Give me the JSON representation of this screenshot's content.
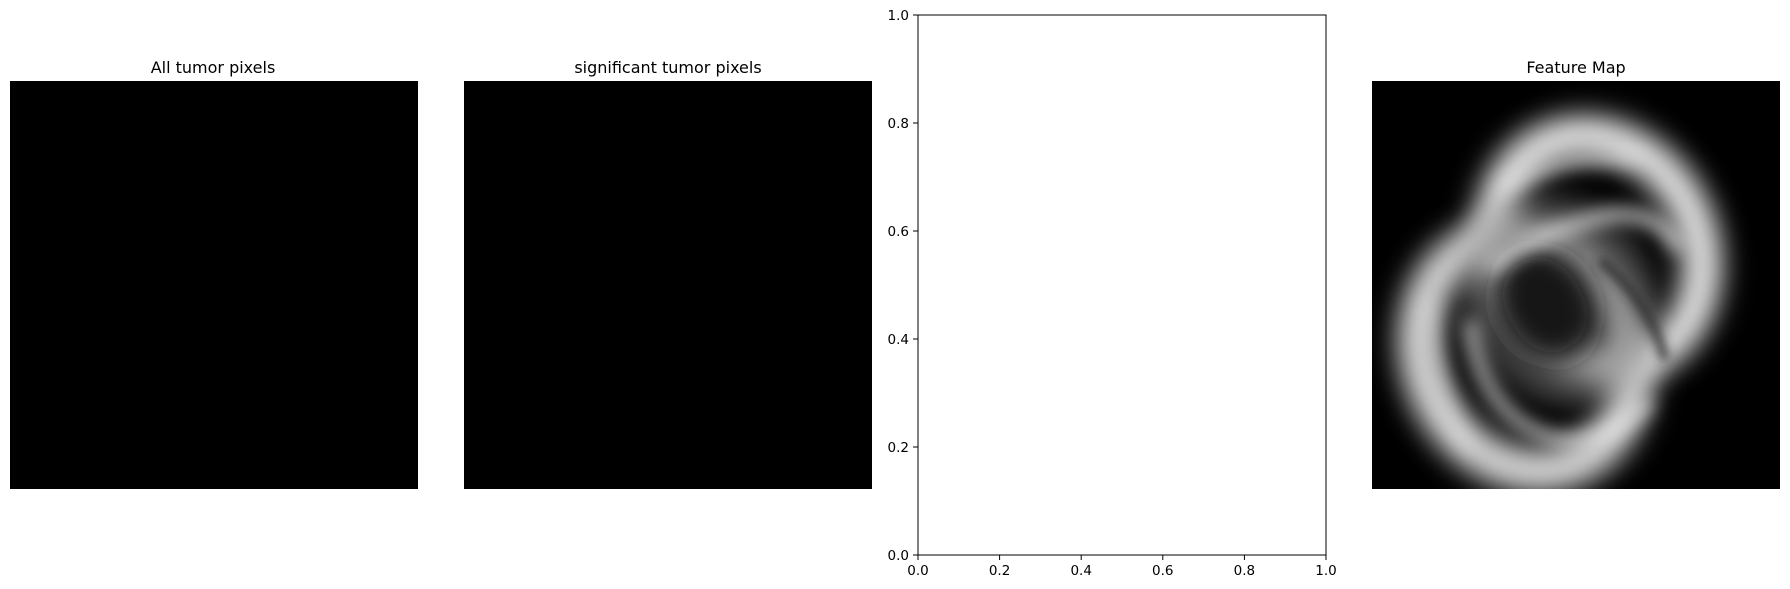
{
  "chart_data": [
    {
      "type": "image",
      "title": "All tumor pixels",
      "content": "blank (all black)",
      "colors": {
        "fill": "#000000"
      }
    },
    {
      "type": "image",
      "title": "significant tumor pixels",
      "content": "blank (all black)",
      "colors": {
        "fill": "#000000"
      }
    },
    {
      "type": "scatter",
      "title": "",
      "series": [],
      "xlim": [
        0,
        1
      ],
      "ylim": [
        0,
        1
      ],
      "xticks": [
        "0.0",
        "0.2",
        "0.4",
        "0.6",
        "0.8",
        "1.0"
      ],
      "yticks": [
        "0.0",
        "0.2",
        "0.4",
        "0.6",
        "0.8",
        "1.0"
      ],
      "xlabel": "",
      "ylabel": "",
      "grid": false
    },
    {
      "type": "image",
      "title": "Feature Map",
      "content": "grayscale blurred ring-like feature on black background",
      "colors": {
        "background": "#000000",
        "highlight": "#f0f0f0"
      }
    }
  ]
}
